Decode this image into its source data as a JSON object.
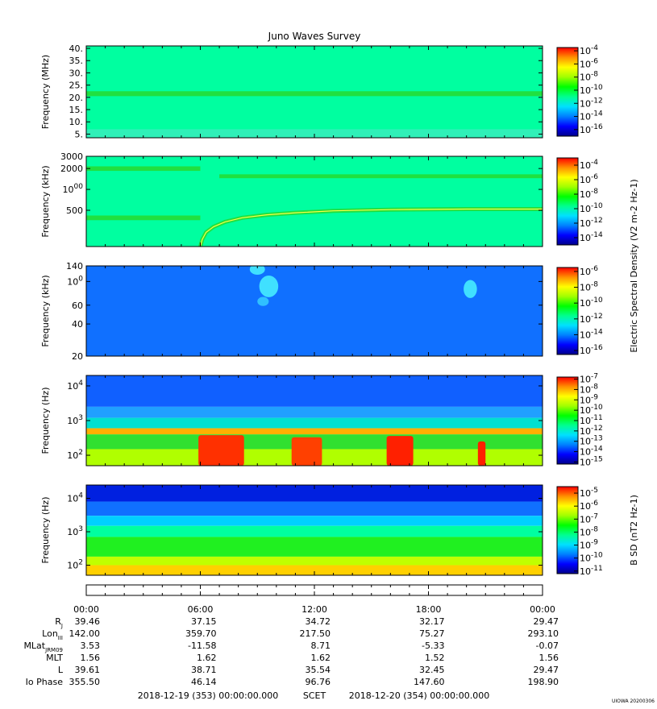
{
  "title": "Juno Waves Survey",
  "footer": {
    "start": "2018-12-19 (353) 00:00:00.000",
    "scet": "SCET",
    "end": "2018-12-20 (354) 00:00:00.000",
    "credit": "UIOWA 20200306"
  },
  "colorscale": [
    "#00008c",
    "#0000ff",
    "#0080ff",
    "#00e0ff",
    "#00ff90",
    "#00ff00",
    "#a0ff00",
    "#ffff00",
    "#ff9000",
    "#ff0000"
  ],
  "time_axis": {
    "ticks": [
      "00:00",
      "06:00",
      "12:00",
      "18:00",
      "00:00"
    ],
    "minor_per_hour": 1
  },
  "ephemeris": {
    "rows": [
      {
        "label": "R",
        "sub": "J",
        "values": [
          "39.46",
          "37.15",
          "34.72",
          "32.17",
          "29.47"
        ]
      },
      {
        "label": "Lon",
        "sub": "III",
        "values": [
          "142.00",
          "359.70",
          "217.50",
          "75.27",
          "293.10"
        ]
      },
      {
        "label": "MLat",
        "sub": "JRM09",
        "values": [
          "3.53",
          "-11.58",
          "8.71",
          "-5.33",
          "-0.07"
        ]
      },
      {
        "label": "MLT",
        "sub": "",
        "values": [
          "1.56",
          "1.62",
          "1.62",
          "1.52",
          "1.56"
        ]
      },
      {
        "label": "L",
        "sub": "",
        "values": [
          "39.61",
          "38.71",
          "35.54",
          "32.45",
          "29.47"
        ]
      },
      {
        "label": "Io Phase",
        "sub": "",
        "values": [
          "355.50",
          "46.14",
          "96.76",
          "147.60",
          "198.90"
        ]
      }
    ]
  },
  "chart_data": [
    {
      "type": "heatmap",
      "ylabel": "Frequency (MHz)",
      "yscale": "linear",
      "ylim": [
        3.5,
        41
      ],
      "yticks": [
        "5.",
        "10.",
        "15.",
        "20.",
        "25.",
        "30.",
        "35.",
        "40."
      ],
      "ytick_values": [
        5,
        10,
        15,
        20,
        25,
        30,
        35,
        40
      ],
      "colorbar": {
        "labels": [
          "10-4",
          "10-6",
          "10-8",
          "10-10",
          "10-12",
          "10-14",
          "10-16"
        ],
        "exponents": [
          -4,
          -6,
          -8,
          -10,
          -12,
          -14,
          -16
        ],
        "range": [
          -3.5,
          -17
        ]
      },
      "background": "#00ffa0",
      "bands": [
        {
          "ymin": 20.5,
          "ymax": 22.5,
          "color": "#20e040",
          "x0": 0,
          "x1": 24
        },
        {
          "ymin": 3.5,
          "ymax": 7,
          "color": "#30f0b8",
          "x0": 0,
          "x1": 24
        }
      ]
    },
    {
      "type": "heatmap",
      "ylabel": "Frequency (kHz)",
      "yscale": "log",
      "ylim": [
        150,
        3000
      ],
      "yticks": [
        "3000",
        "2000",
        "1000",
        "500"
      ],
      "ytick_values": [
        3000,
        2000,
        1000,
        500
      ],
      "colorbar": {
        "labels": [
          "10-4",
          "10-6",
          "10-8",
          "10-10",
          "10-12",
          "10-14"
        ],
        "exponents": [
          -4,
          -6,
          -8,
          -10,
          -12,
          -14
        ],
        "range": [
          -3,
          -15
        ]
      },
      "colorbar_title": "Electric Spectral Density (V2 m-2 Hz-1)",
      "background": "#00ffa0",
      "bands": [
        {
          "ymin": 1850,
          "ymax": 2150,
          "color": "#20e040",
          "x0": 0,
          "x1": 6
        },
        {
          "ymin": 360,
          "ymax": 420,
          "color": "#20e040",
          "x0": 0,
          "x1": 6
        },
        {
          "ymin": 1450,
          "ymax": 1650,
          "color": "#20e040",
          "x0": 7,
          "x1": 24
        }
      ],
      "curve": {
        "name": "emission",
        "x": [
          6.0,
          6.1,
          6.3,
          6.7,
          7.3,
          8.2,
          9.5,
          11,
          13,
          16,
          20,
          24
        ],
        "y": [
          150,
          190,
          240,
          290,
          340,
          390,
          430,
          460,
          490,
          510,
          520,
          520
        ],
        "color": "#20e040"
      }
    },
    {
      "type": "heatmap",
      "ylabel": "Frequency (kHz)",
      "yscale": "log",
      "ylim": [
        20,
        140
      ],
      "yticks": [
        "140",
        "100",
        "60",
        "40",
        "20"
      ],
      "ytick_values": [
        140,
        100,
        60,
        40,
        20
      ],
      "colorbar": {
        "labels": [
          "10-6",
          "10-8",
          "10-10",
          "10-12",
          "10-14",
          "10-16"
        ],
        "exponents": [
          -6,
          -8,
          -10,
          -12,
          -14,
          -16
        ],
        "range": [
          -5.5,
          -16.5
        ]
      },
      "background": "#1070ff",
      "blobs": [
        {
          "x": 9.6,
          "y": 90,
          "rx": 0.5,
          "ry": 0.12,
          "color": "#40e0ff"
        },
        {
          "x": 9.0,
          "y": 130,
          "rx": 0.4,
          "ry": 0.06,
          "color": "#40e0ff"
        },
        {
          "x": 9.3,
          "y": 65,
          "rx": 0.3,
          "ry": 0.05,
          "color": "#30c0ff"
        },
        {
          "x": 20.2,
          "y": 85,
          "rx": 0.35,
          "ry": 0.1,
          "color": "#40e0ff"
        }
      ]
    },
    {
      "type": "heatmap",
      "ylabel": "Frequency (Hz)",
      "yscale": "log",
      "ylim": [
        50,
        20000
      ],
      "yticks": [
        "104",
        "103",
        "102"
      ],
      "ytick_values": [
        10000,
        1000,
        100
      ],
      "colorbar": {
        "labels": [
          "10-7",
          "10-8",
          "10-9",
          "10-10",
          "10-11",
          "10-12",
          "10-13",
          "10-14",
          "10-15"
        ],
        "exponents": [
          -7,
          -8,
          -9,
          -10,
          -11,
          -12,
          -13,
          -14,
          -15
        ],
        "range": [
          -6.8,
          -15.2
        ]
      },
      "layers": [
        {
          "ymin": 2500,
          "ymax": 20000,
          "color": "#1060ff"
        },
        {
          "ymin": 1200,
          "ymax": 2500,
          "color": "#20a0ff"
        },
        {
          "ymin": 600,
          "ymax": 1200,
          "color": "#00e0d0"
        },
        {
          "ymin": 400,
          "ymax": 600,
          "color": "#ffb000"
        },
        {
          "ymin": 150,
          "ymax": 400,
          "color": "#30e030"
        },
        {
          "ymin": 50,
          "ymax": 150,
          "color": "#b0ff00"
        }
      ],
      "hot_spots": [
        {
          "x0": 5.9,
          "x1": 8.3,
          "ymin": 50,
          "ymax": 380,
          "color": "#ff3000"
        },
        {
          "x0": 10.8,
          "x1": 12.4,
          "ymin": 50,
          "ymax": 330,
          "color": "#ff4000"
        },
        {
          "x0": 15.8,
          "x1": 17.2,
          "ymin": 50,
          "ymax": 360,
          "color": "#ff2000"
        },
        {
          "x0": 20.6,
          "x1": 21.0,
          "ymin": 50,
          "ymax": 250,
          "color": "#ff2000"
        }
      ]
    },
    {
      "type": "heatmap",
      "ylabel": "Frequency (Hz)",
      "yscale": "log",
      "ylim": [
        50,
        25000
      ],
      "yticks": [
        "104",
        "103",
        "102"
      ],
      "ytick_values": [
        10000,
        1000,
        100
      ],
      "colorbar": {
        "labels": [
          "10-5",
          "10-6",
          "10-7",
          "10-8",
          "10-9",
          "10-10",
          "10-11"
        ],
        "exponents": [
          -5,
          -6,
          -7,
          -8,
          -9,
          -10,
          -11
        ],
        "range": [
          -4.5,
          -11.2
        ]
      },
      "colorbar_title": "B SD (nT2 Hz-1)",
      "layers": [
        {
          "ymin": 8000,
          "ymax": 25000,
          "color": "#0020e0"
        },
        {
          "ymin": 3000,
          "ymax": 8000,
          "color": "#1070ff"
        },
        {
          "ymin": 1500,
          "ymax": 3000,
          "color": "#00d0ff"
        },
        {
          "ymin": 700,
          "ymax": 1500,
          "color": "#00ffa0"
        },
        {
          "ymin": 180,
          "ymax": 700,
          "color": "#20f020"
        },
        {
          "ymin": 100,
          "ymax": 180,
          "color": "#c0ff00"
        },
        {
          "ymin": 50,
          "ymax": 100,
          "color": "#ffd000"
        }
      ]
    }
  ]
}
